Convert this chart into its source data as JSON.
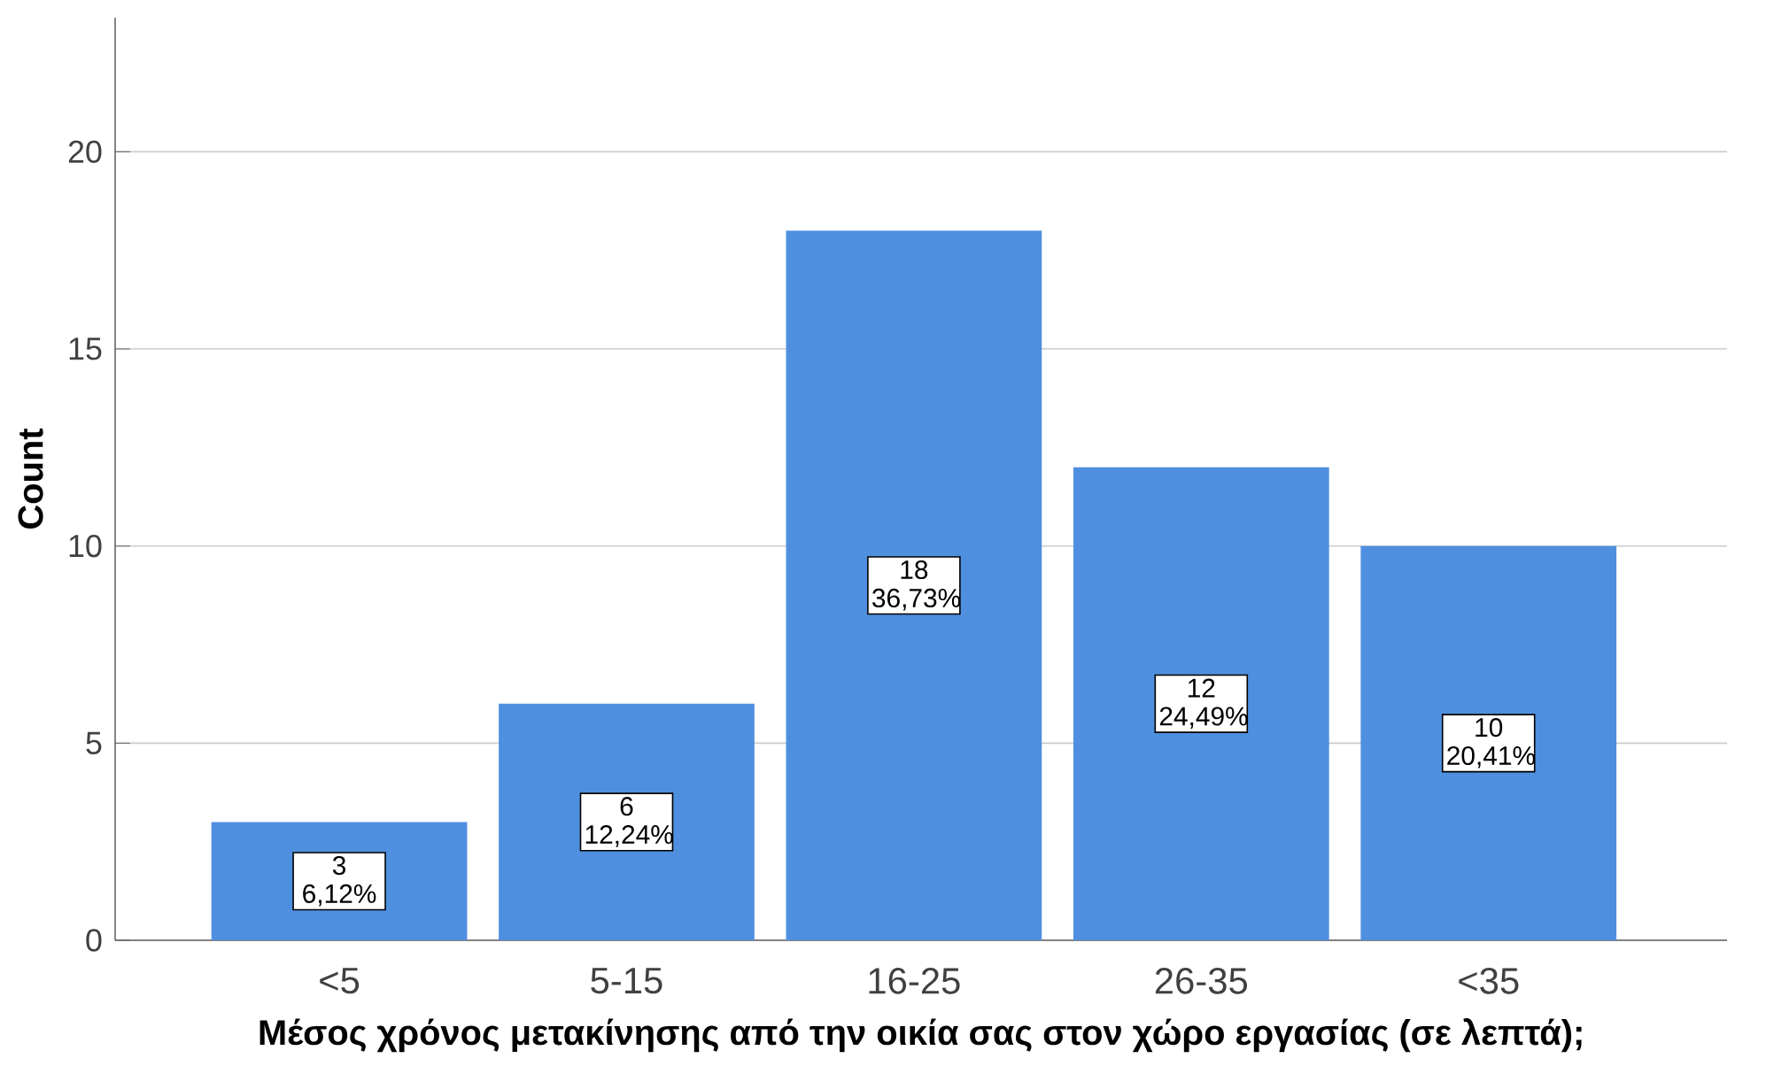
{
  "chart_data": {
    "type": "bar",
    "categories": [
      "<5",
      "5-15",
      "16-25",
      "26-35",
      "<35"
    ],
    "values": [
      3,
      6,
      18,
      12,
      10
    ],
    "value_labels": [
      "3 6,12%",
      "6 12,24%",
      "18 36,73%",
      "12 24,49%",
      "10 20,41%"
    ],
    "color": "#4f8fe0",
    "xlabel": "Μέσος χρόνος μετακίνησης από την οικία σας στον χώρο εργασίας (σε λεπτά);",
    "ylabel": "Count",
    "ylim": [
      0,
      23.4
    ],
    "yticks": [
      0,
      5,
      10,
      15,
      20
    ],
    "grid": "y"
  }
}
